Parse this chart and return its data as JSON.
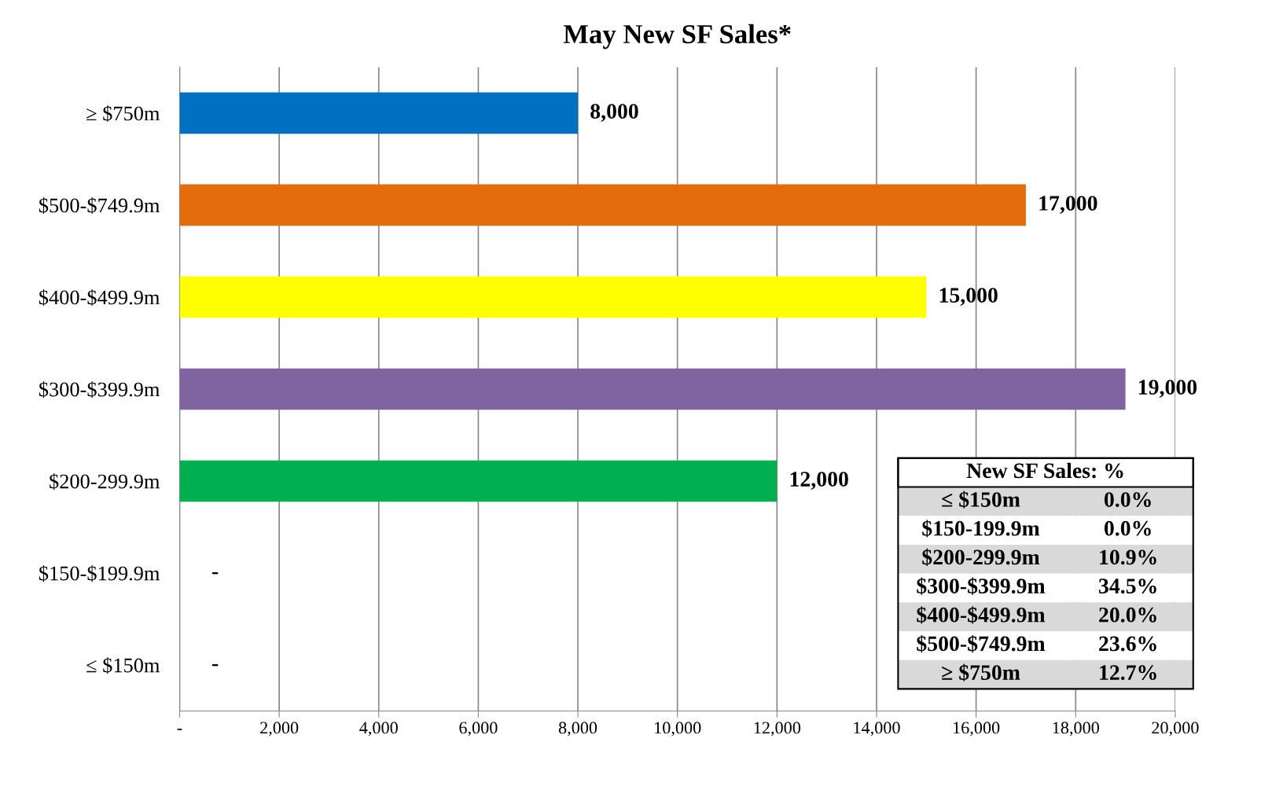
{
  "chart_data": {
    "type": "bar",
    "orientation": "horizontal",
    "title": "May New SF Sales*",
    "categories": [
      "≥ $750m",
      "$500-$749.9m",
      "$400-$499.9m",
      "$300-$399.9m",
      "$200-299.9m",
      "$150-$199.9m",
      "≤ $150m"
    ],
    "values": [
      8000,
      17000,
      15000,
      19000,
      12000,
      0,
      0
    ],
    "colors": [
      "#0070c0",
      "#e46c0a",
      "#ffff00",
      "#8064a2",
      "#00b050",
      "#000000",
      "#000000"
    ],
    "value_labels": [
      "8,000",
      "17,000",
      "15,000",
      "19,000",
      "12,000",
      "-",
      "-"
    ],
    "xlim": [
      0,
      20000
    ],
    "xticks": [
      {
        "value": 0,
        "label": "-"
      },
      {
        "value": 2000,
        "label": "2,000"
      },
      {
        "value": 4000,
        "label": "4,000"
      },
      {
        "value": 6000,
        "label": "6,000"
      },
      {
        "value": 8000,
        "label": "8,000"
      },
      {
        "value": 10000,
        "label": "10,000"
      },
      {
        "value": 12000,
        "label": "12,000"
      },
      {
        "value": 14000,
        "label": "14,000"
      },
      {
        "value": 16000,
        "label": "16,000"
      },
      {
        "value": 18000,
        "label": "18,000"
      },
      {
        "value": 20000,
        "label": "20,000"
      }
    ],
    "grid": "x",
    "annotations": [
      "New SF Sales: %",
      "≤ $150m",
      "0.0%",
      "$150-199.9m",
      "0.0%",
      "$200-299.9m",
      "10.9%",
      "$300-$399.9m",
      "34.5%",
      "$400-$499.9m",
      "20.0%",
      "$500-$749.9m",
      "23.6%",
      "≥ $750m",
      "12.7%"
    ]
  }
}
